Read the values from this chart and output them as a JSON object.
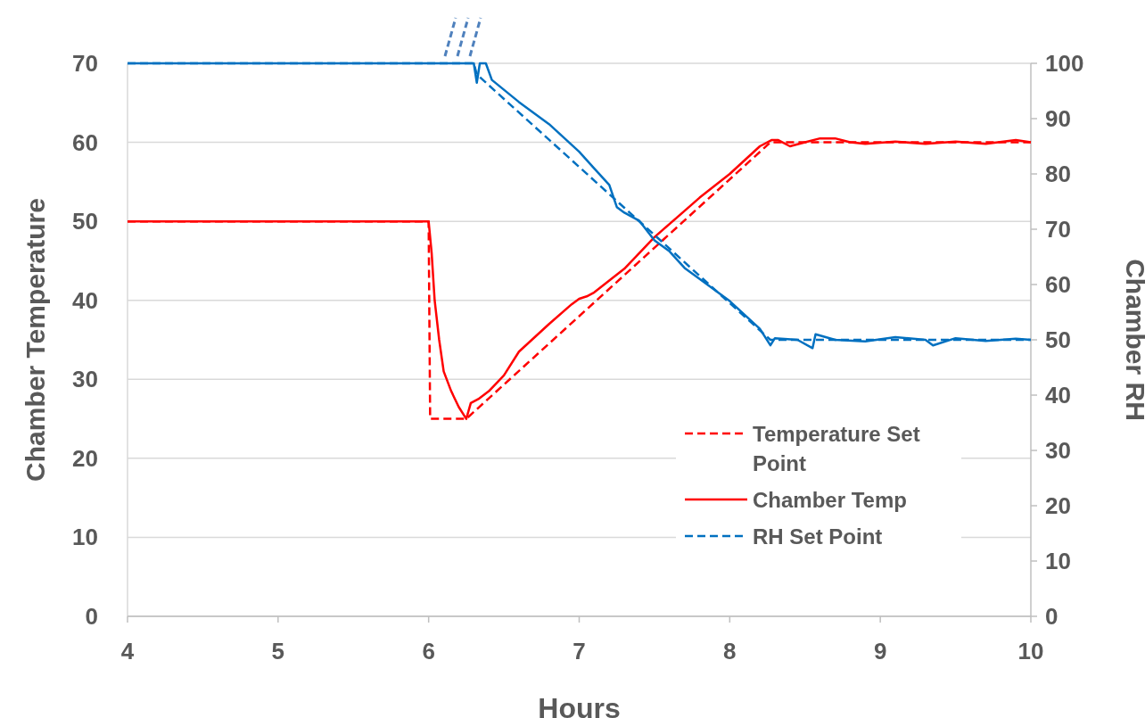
{
  "chart_data": {
    "type": "line",
    "xlabel": "Hours",
    "ylabel": "Chamber Temperature",
    "y2label": "Chamber RH",
    "xlim": [
      4,
      10
    ],
    "xticks": [
      4,
      5,
      6,
      7,
      8,
      9,
      10
    ],
    "ylim": [
      0,
      70
    ],
    "yticks": [
      0,
      10,
      20,
      30,
      40,
      50,
      60,
      70
    ],
    "y2lim": [
      0,
      100
    ],
    "y2ticks": [
      0,
      10,
      20,
      30,
      40,
      50,
      60,
      70,
      80,
      90,
      100
    ],
    "grid": "y",
    "legend": "bottom right",
    "marker": "none",
    "series": [
      {
        "name": "Temperature Set Point",
        "color": "#ff0000",
        "line_style": "dashed",
        "x": [
          4,
          6.0,
          6.01,
          6.25,
          8.27,
          10
        ],
        "values": [
          50,
          50,
          25,
          25,
          60,
          60
        ]
      },
      {
        "name": "Chamber Temp",
        "color": "#ff0000",
        "line_style": "solid",
        "x": [
          4,
          4.3,
          4.6,
          5.5,
          6.0,
          6.02,
          6.04,
          6.07,
          6.1,
          6.15,
          6.2,
          6.25,
          6.28,
          6.33,
          6.4,
          6.5,
          6.6,
          6.8,
          6.95,
          7.0,
          7.05,
          7.1,
          7.3,
          7.5,
          7.8,
          8.0,
          8.2,
          8.28,
          8.32,
          8.4,
          8.5,
          8.6,
          8.7,
          8.8,
          8.9,
          9.1,
          9.3,
          9.5,
          9.7,
          9.9,
          10
        ],
        "values": [
          50,
          50,
          50,
          50,
          50,
          46,
          40,
          35,
          31,
          28.5,
          26.5,
          25,
          27,
          27.5,
          28.5,
          30.5,
          33.5,
          37,
          39.5,
          40.2,
          40.5,
          41,
          44,
          48,
          53,
          56,
          59.5,
          60.3,
          60.3,
          59.5,
          60,
          60.5,
          60.5,
          60,
          59.8,
          60.1,
          59.8,
          60.1,
          59.8,
          60.3,
          60
        ]
      },
      {
        "name": "RH Set Point",
        "color": "#0070c0",
        "line_style": "dashed",
        "axis": "y2",
        "x": [
          4,
          6.3,
          6.32,
          8.27,
          10
        ],
        "values": [
          100,
          100,
          98,
          50,
          50
        ]
      },
      {
        "color": "#0070c0",
        "line_style": "solid",
        "axis": "y2",
        "x": [
          4,
          6.0,
          6.3,
          6.32,
          6.34,
          6.36,
          6.38,
          6.42,
          6.6,
          6.8,
          7.0,
          7.1,
          7.2,
          7.25,
          7.3,
          7.4,
          7.5,
          7.6,
          7.7,
          7.8,
          8.0,
          8.2,
          8.27,
          8.3,
          8.45,
          8.55,
          8.57,
          8.7,
          8.9,
          9.1,
          9.3,
          9.35,
          9.5,
          9.7,
          9.9,
          10
        ],
        "values": [
          100,
          100,
          100,
          96.5,
          100,
          100,
          100,
          97,
          93,
          89,
          84,
          81,
          78,
          74,
          73,
          71.5,
          68,
          66,
          63,
          61,
          57,
          52,
          49,
          50.3,
          50,
          48.5,
          51,
          50,
          49.7,
          50.5,
          50,
          49,
          50.3,
          49.8,
          50.2,
          50
        ]
      }
    ]
  }
}
